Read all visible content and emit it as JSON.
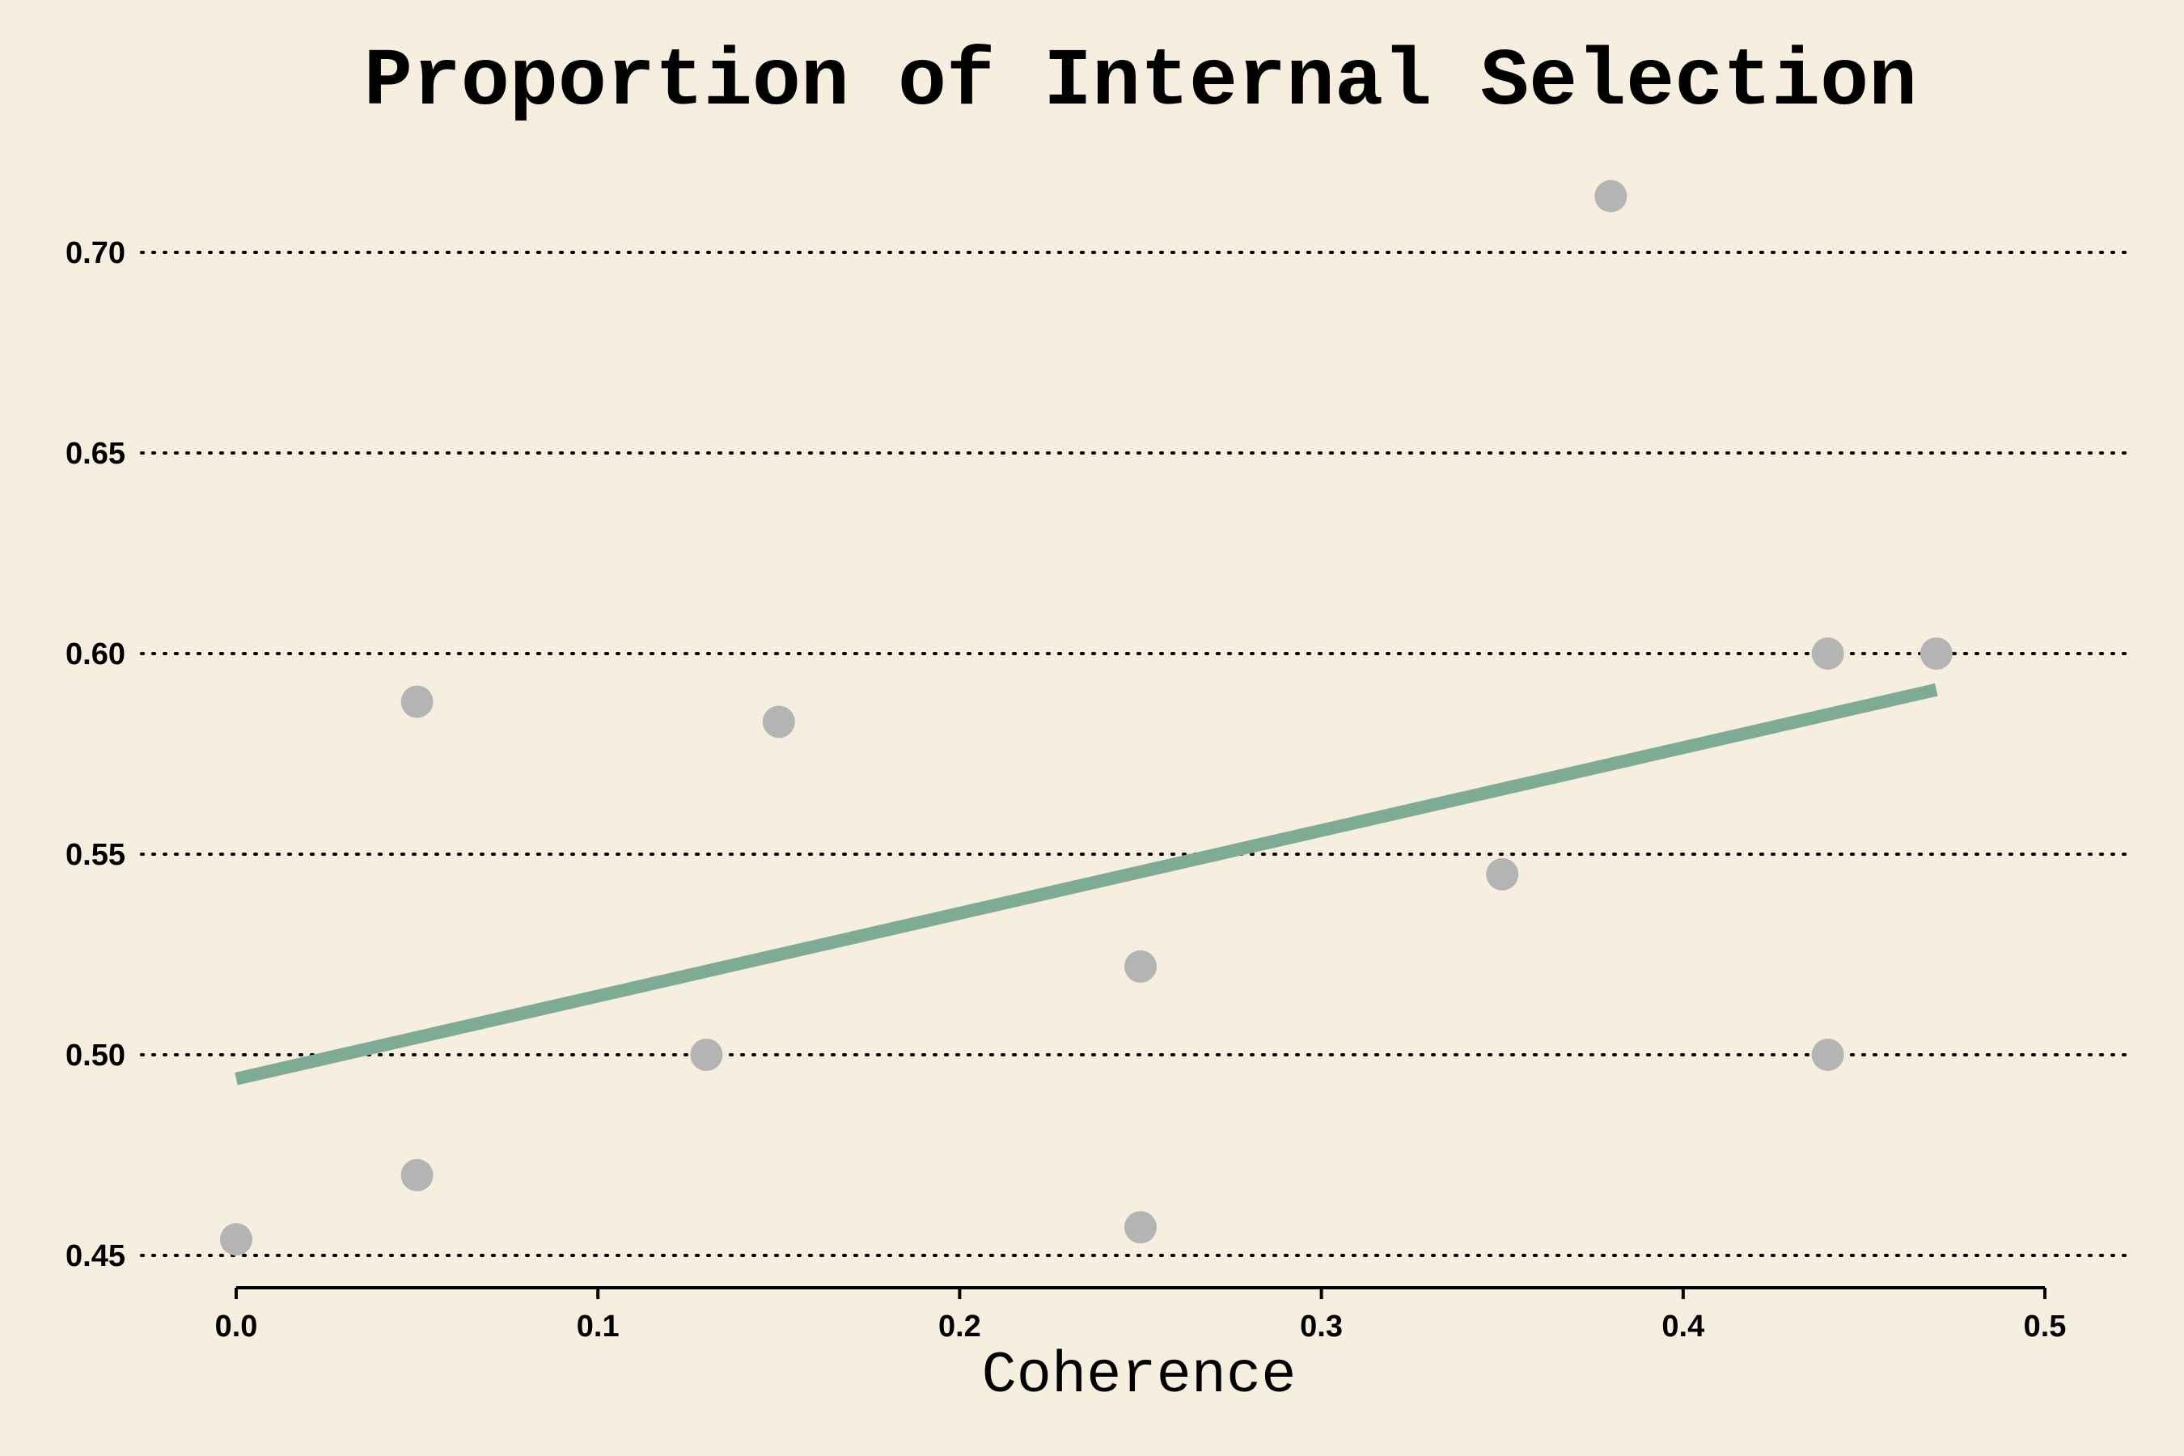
{
  "chart_data": {
    "type": "scatter",
    "title": "Proportion of Internal Selection",
    "xlabel": "Coherence",
    "ylabel": "",
    "xlim": [
      -0.025,
      0.52
    ],
    "ylim": [
      0.442,
      0.728
    ],
    "xticks": [
      0.0,
      0.1,
      0.2,
      0.3,
      0.4,
      0.5
    ],
    "xtick_labels": [
      "0.0",
      "0.1",
      "0.2",
      "0.3",
      "0.4",
      "0.5"
    ],
    "yticks": [
      0.45,
      0.5,
      0.55,
      0.6,
      0.65,
      0.7
    ],
    "ytick_labels": [
      "0.45",
      "0.50",
      "0.55",
      "0.60",
      "0.65",
      "0.70"
    ],
    "grid": "horizontal dotted",
    "points": [
      {
        "x": 0.0,
        "y": 0.454
      },
      {
        "x": 0.05,
        "y": 0.588
      },
      {
        "x": 0.05,
        "y": 0.47
      },
      {
        "x": 0.13,
        "y": 0.5
      },
      {
        "x": 0.15,
        "y": 0.583
      },
      {
        "x": 0.25,
        "y": 0.522
      },
      {
        "x": 0.25,
        "y": 0.457
      },
      {
        "x": 0.35,
        "y": 0.545
      },
      {
        "x": 0.38,
        "y": 0.714
      },
      {
        "x": 0.44,
        "y": 0.6
      },
      {
        "x": 0.44,
        "y": 0.5
      },
      {
        "x": 0.47,
        "y": 0.6
      }
    ],
    "trendline": {
      "x": [
        0.0,
        0.47
      ],
      "y": [
        0.494,
        0.591
      ]
    },
    "colors": {
      "background": "#f6efdf",
      "points": "#b4b4b4",
      "trendline": "#7fab95"
    }
  }
}
